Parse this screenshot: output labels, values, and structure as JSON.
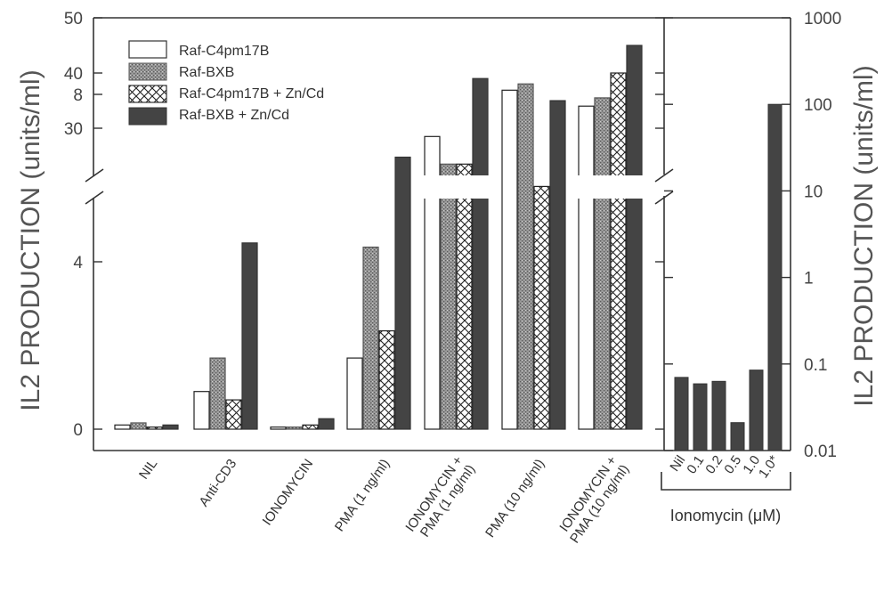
{
  "chart_data": [
    {
      "type": "bar",
      "ylabel": "IL2 PRODUCTION (units/ml)",
      "y_axis": "broken linear",
      "ylim_lower": [
        0,
        11
      ],
      "ylim_upper": [
        20,
        50
      ],
      "yticks_lower": [
        "0",
        "4",
        "8"
      ],
      "yticks_upper": [
        "30",
        "40",
        "50"
      ],
      "legend_position": "top-left",
      "legend": [
        "Raf-C4pm17B",
        "Raf-BXB",
        "Raf-C4pm17B + Zn/Cd",
        "Raf-BXB + Zn/Cd"
      ],
      "categories": [
        "NIL",
        "Anti-CD3",
        "IONOMYCIN",
        "PMA (1 ng/ml)",
        "IONOMYCIN + PMA (1 ng/ml)",
        "PMA (10 ng/ml)",
        "IONOMYCIN + PMA (10 ng/ml)"
      ],
      "series": [
        {
          "name": "Raf-C4pm17B",
          "color": "#ffffff",
          "pattern": "open",
          "values": [
            0.1,
            0.9,
            0.05,
            1.7,
            28.5,
            8.1,
            34
          ]
        },
        {
          "name": "Raf-BXB",
          "color": "#8c8c8c",
          "pattern": "stippled",
          "values": [
            0.15,
            1.7,
            0.05,
            4.35,
            23.5,
            8.25,
            35.5
          ]
        },
        {
          "name": "Raf-C4pm17B + Zn/Cd",
          "color": "#ffffff",
          "pattern": "cross-hatched",
          "values": [
            0.05,
            0.7,
            0.1,
            2.35,
            23.5,
            5.8,
            40
          ]
        },
        {
          "name": "Raf-BXB + Zn/Cd",
          "color": "#444444",
          "pattern": "solid",
          "values": [
            0.1,
            4.45,
            0.25,
            6.5,
            39,
            7.85,
            45
          ]
        }
      ]
    },
    {
      "type": "bar",
      "ylabel": "IL2 PRODUCTION (units/ml)",
      "y_scale": "log",
      "ylim": [
        0.01,
        1000
      ],
      "yticks": [
        "0.01",
        "0.1",
        "1",
        "10",
        "100",
        "1000"
      ],
      "xlabel": "Ionomycin (μM)",
      "categories": [
        "Nil",
        "0.1",
        "0.2",
        "0.5",
        "1.0",
        "1.0*"
      ],
      "values": [
        0.07,
        0.059,
        0.063,
        0.021,
        0.085,
        100
      ],
      "color": "#444444"
    }
  ]
}
